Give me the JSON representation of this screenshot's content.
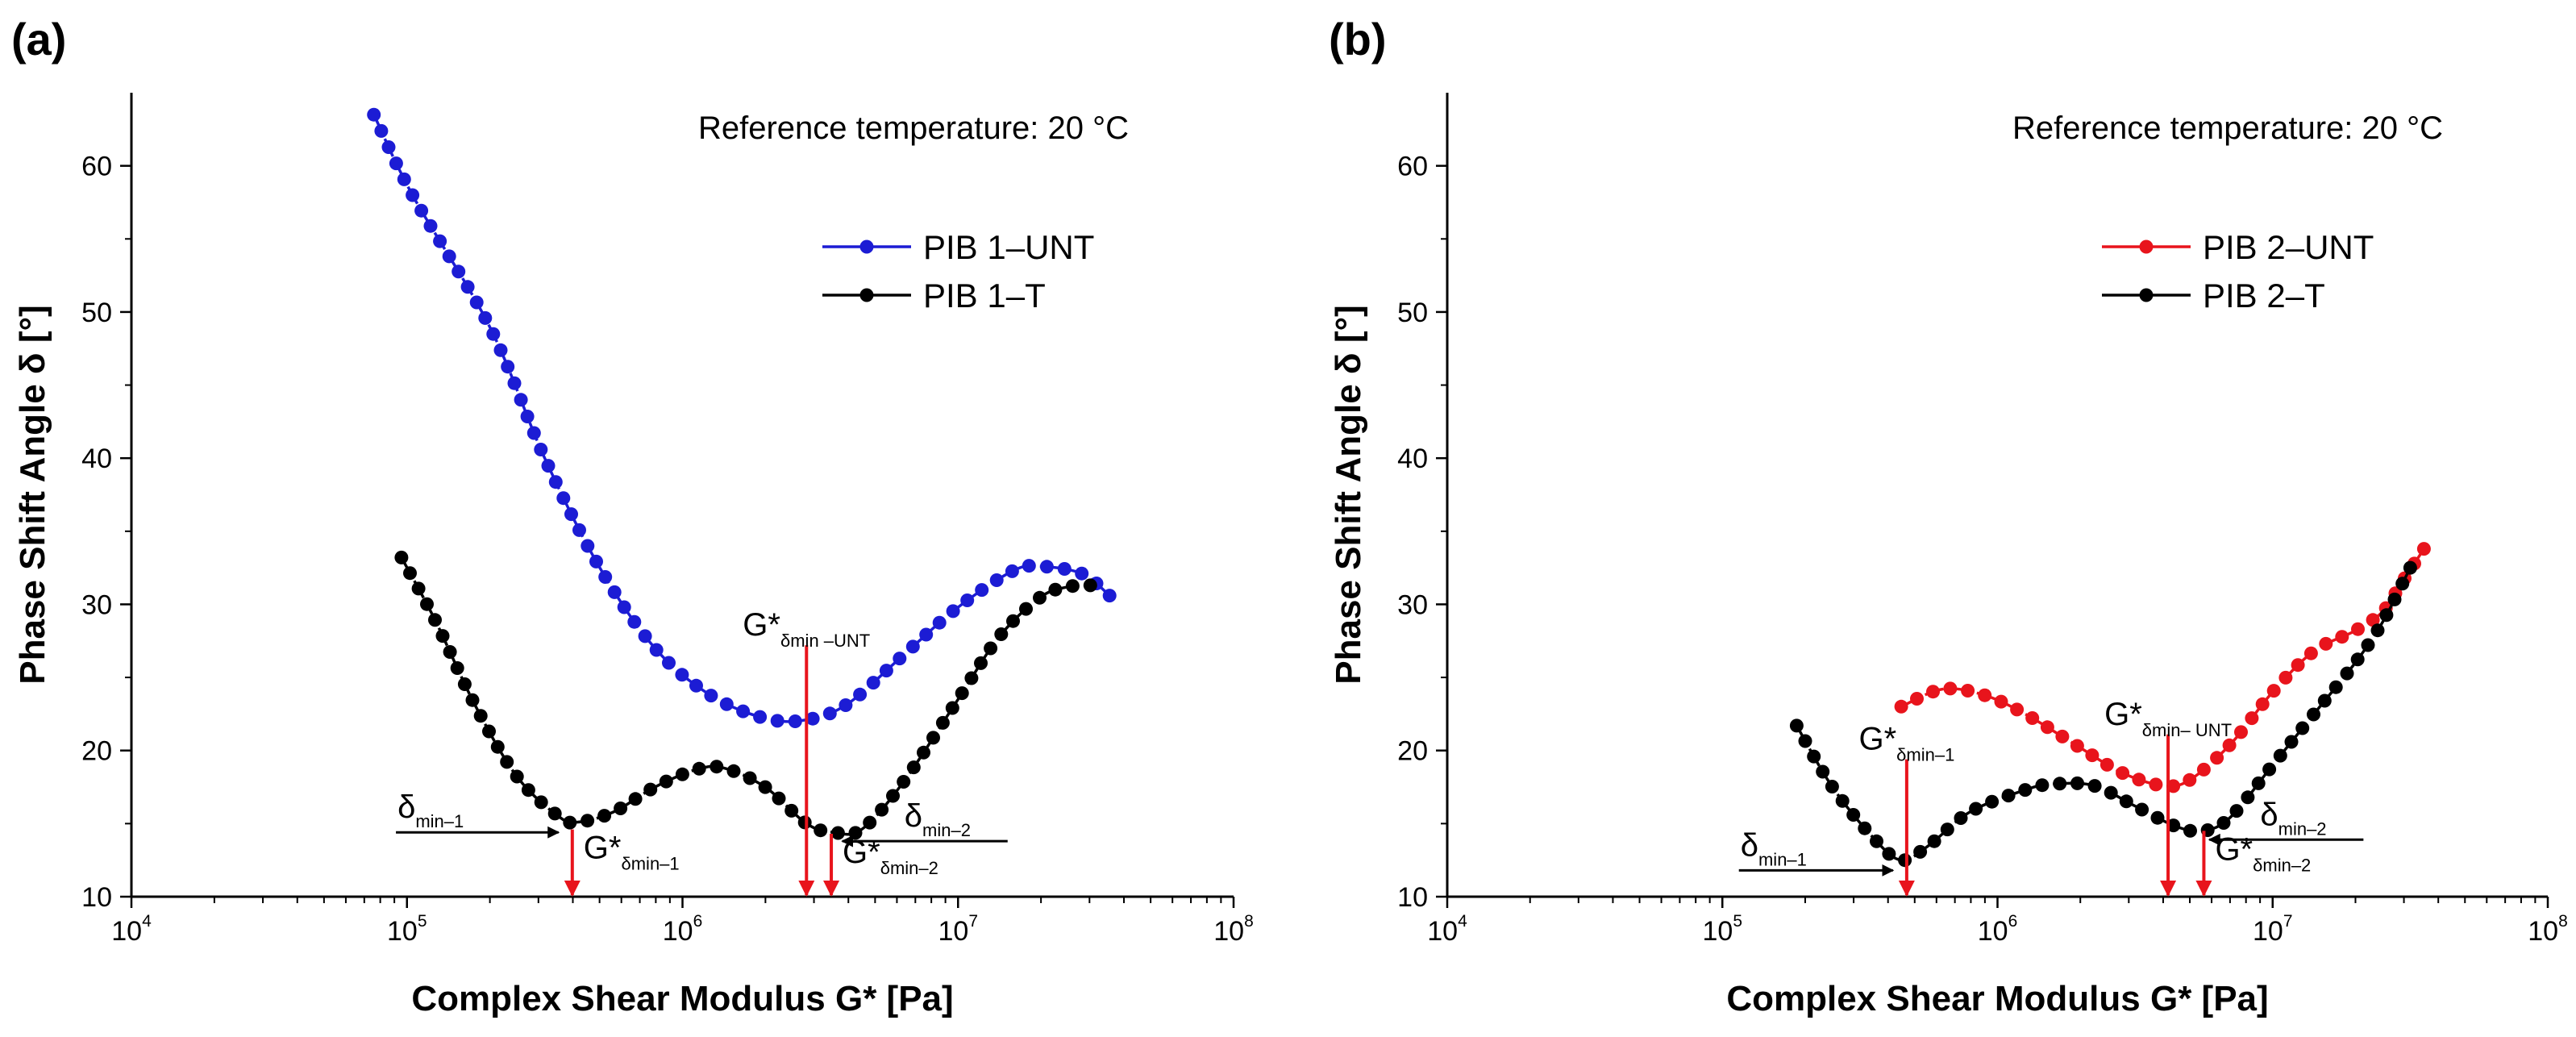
{
  "chart_data": [
    {
      "panel_label": "(a)",
      "type": "line",
      "x_scale": "log",
      "xlim": [
        10000,
        100000000
      ],
      "ylim": [
        10,
        65
      ],
      "xlabel": "Complex Shear Modulus G* [Pa]",
      "ylabel": "Phase Shift Angle δ [°]",
      "x_ticks": [
        {
          "base": "10",
          "exp": "4",
          "value": 10000
        },
        {
          "base": "10",
          "exp": "5",
          "value": 100000
        },
        {
          "base": "10",
          "exp": "6",
          "value": 1000000
        },
        {
          "base": "10",
          "exp": "7",
          "value": 10000000
        },
        {
          "base": "10",
          "exp": "8",
          "value": 100000000
        }
      ],
      "y_ticks": [
        {
          "label": "10",
          "value": 10
        },
        {
          "label": "20",
          "value": 20
        },
        {
          "label": "30",
          "value": 30
        },
        {
          "label": "40",
          "value": 40
        },
        {
          "label": "50",
          "value": 50
        },
        {
          "label": "60",
          "value": 60
        }
      ],
      "note": "Reference temperature: 20 °C",
      "series": [
        {
          "name": "PIB 1–UNT",
          "color": "#1c1cd4",
          "points": [
            [
              4.88,
              63.5
            ],
            [
              5.02,
              58
            ],
            [
              5.3,
              49
            ],
            [
              5.5,
              40
            ],
            [
              5.7,
              32.5
            ],
            [
              5.9,
              27
            ],
            [
              6.1,
              23.8
            ],
            [
              6.3,
              22.2
            ],
            [
              6.45,
              22.1
            ],
            [
              6.6,
              23.2
            ],
            [
              6.8,
              26.5
            ],
            [
              7.0,
              29.8
            ],
            [
              7.2,
              32.3
            ],
            [
              7.3,
              32.6
            ],
            [
              7.45,
              32.1
            ],
            [
              7.55,
              30.6
            ]
          ]
        },
        {
          "name": "PIB 1–T",
          "color": "#000000",
          "points": [
            [
              4.98,
              33.2
            ],
            [
              5.1,
              29
            ],
            [
              5.25,
              23
            ],
            [
              5.4,
              18.2
            ],
            [
              5.55,
              15.5
            ],
            [
              5.62,
              15.1
            ],
            [
              5.75,
              15.8
            ],
            [
              5.9,
              17.5
            ],
            [
              6.05,
              18.7
            ],
            [
              6.15,
              18.8
            ],
            [
              6.3,
              17.5
            ],
            [
              6.45,
              15
            ],
            [
              6.55,
              14.4
            ],
            [
              6.65,
              14.6
            ],
            [
              6.8,
              17.8
            ],
            [
              7.0,
              23.5
            ],
            [
              7.15,
              27.8
            ],
            [
              7.3,
              30.5
            ],
            [
              7.4,
              31.2
            ],
            [
              7.48,
              31.3
            ]
          ]
        }
      ],
      "annotations": [
        {
          "kind": "arrow-down",
          "x": 5.6,
          "y_from": 14.6,
          "y_to": 10,
          "label": "G*",
          "sub": "δmin–1"
        },
        {
          "kind": "arrow-down",
          "x": 6.45,
          "y_from": 27.2,
          "y_to": 10,
          "label": "G*",
          "sub": "δmin –UNT"
        },
        {
          "kind": "arrow-down",
          "x": 6.54,
          "y_from": 14.3,
          "y_to": 10,
          "label": "G*",
          "sub": "δmin–2"
        },
        {
          "kind": "arrow-right",
          "x_from": 4.96,
          "x_to": 5.55,
          "y": 14.4,
          "label": "δ",
          "sub": "min–1"
        },
        {
          "kind": "arrow-left",
          "x_from": 7.18,
          "x_to": 6.58,
          "y": 13.8,
          "label": "δ",
          "sub": "min–2"
        }
      ]
    },
    {
      "panel_label": "(b)",
      "type": "line",
      "x_scale": "log",
      "xlim": [
        10000,
        100000000
      ],
      "ylim": [
        10,
        65
      ],
      "xlabel": "Complex Shear Modulus G* [Pa]",
      "ylabel": "Phase Shift Angle δ [°]",
      "x_ticks": [
        {
          "base": "10",
          "exp": "4",
          "value": 10000
        },
        {
          "base": "10",
          "exp": "5",
          "value": 100000
        },
        {
          "base": "10",
          "exp": "6",
          "value": 1000000
        },
        {
          "base": "10",
          "exp": "7",
          "value": 10000000
        },
        {
          "base": "10",
          "exp": "8",
          "value": 100000000
        }
      ],
      "y_ticks": [
        {
          "label": "10",
          "value": 10
        },
        {
          "label": "20",
          "value": 20
        },
        {
          "label": "30",
          "value": 30
        },
        {
          "label": "40",
          "value": 40
        },
        {
          "label": "50",
          "value": 50
        },
        {
          "label": "60",
          "value": 60
        }
      ],
      "note": "Reference temperature: 20 °C",
      "series": [
        {
          "name": "PIB 2–UNT",
          "color": "#e8141c",
          "points": [
            [
              5.65,
              23
            ],
            [
              5.8,
              24.2
            ],
            [
              5.95,
              23.8
            ],
            [
              6.1,
              22.5
            ],
            [
              6.3,
              20.2
            ],
            [
              6.45,
              18.5
            ],
            [
              6.6,
              17.6
            ],
            [
              6.7,
              18
            ],
            [
              6.85,
              20.5
            ],
            [
              7.0,
              24
            ],
            [
              7.15,
              26.8
            ],
            [
              7.3,
              28.2
            ],
            [
              7.4,
              29.5
            ],
            [
              7.47,
              31.5
            ],
            [
              7.55,
              33.8
            ]
          ]
        },
        {
          "name": "PIB 2–T",
          "color": "#000000",
          "points": [
            [
              5.27,
              21.7
            ],
            [
              5.4,
              17.5
            ],
            [
              5.55,
              14
            ],
            [
              5.65,
              12.5
            ],
            [
              5.75,
              13.5
            ],
            [
              5.9,
              15.8
            ],
            [
              6.1,
              17.3
            ],
            [
              6.2,
              17.7
            ],
            [
              6.35,
              17.6
            ],
            [
              6.5,
              16.2
            ],
            [
              6.65,
              14.8
            ],
            [
              6.75,
              14.5
            ],
            [
              6.85,
              15.5
            ],
            [
              7.0,
              19
            ],
            [
              7.15,
              22.5
            ],
            [
              7.3,
              26
            ],
            [
              7.4,
              28.8
            ],
            [
              7.5,
              32.5
            ]
          ]
        }
      ],
      "annotations": [
        {
          "kind": "arrow-down",
          "x": 5.67,
          "y_from": 19.4,
          "y_to": 10,
          "label": "G*",
          "sub": "δmin–1"
        },
        {
          "kind": "arrow-down",
          "x": 6.62,
          "y_from": 21.1,
          "y_to": 10,
          "label": "G*",
          "sub": "δmin– UNT"
        },
        {
          "kind": "arrow-down",
          "x": 6.75,
          "y_from": 14.5,
          "y_to": 10,
          "label": "G*",
          "sub": "δmin–2"
        },
        {
          "kind": "arrow-right",
          "x_from": 5.06,
          "x_to": 5.62,
          "y": 11.8,
          "label": "δ",
          "sub": "min–1"
        },
        {
          "kind": "arrow-left",
          "x_from": 7.33,
          "x_to": 6.77,
          "y": 13.9,
          "label": "δ",
          "sub": "min–2"
        }
      ]
    }
  ]
}
